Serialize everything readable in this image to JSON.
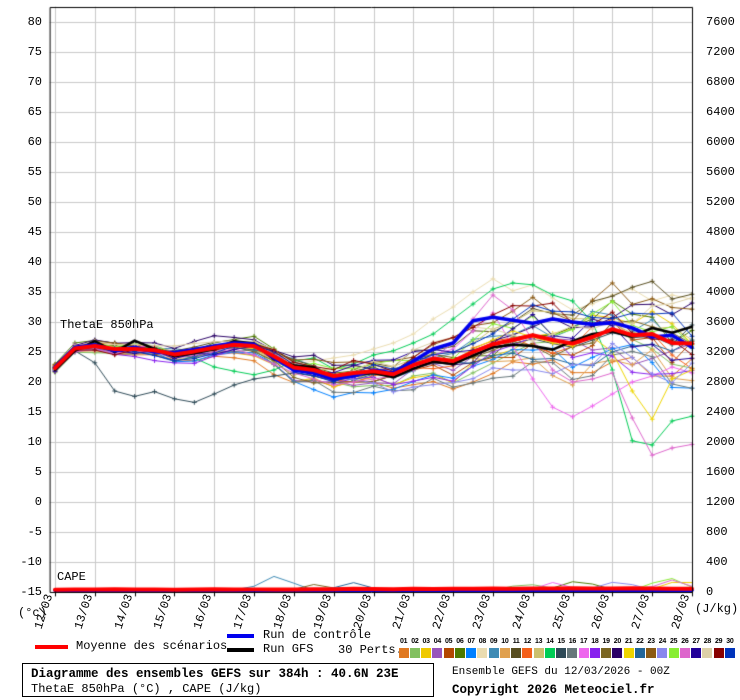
{
  "legend": {
    "mean_label": "Moyenne des scénarios",
    "control_label": "Run de contrôle",
    "gfs_label": "Run GFS",
    "perts_label": "30 Perts.",
    "pert_numbers": [
      "01",
      "02",
      "03",
      "04",
      "05",
      "06",
      "07",
      "08",
      "09",
      "10",
      "11",
      "12",
      "13",
      "14",
      "15",
      "16",
      "17",
      "18",
      "19",
      "20",
      "21",
      "22",
      "23",
      "24",
      "25",
      "26",
      "27",
      "28",
      "29",
      "30"
    ]
  },
  "footer": {
    "title": "Diagramme des ensembles GEFS sur 384h : 40.6N 23E",
    "subtitle": "ThetaE 850hPa (°C) , CAPE (J/kg)",
    "run_info": "Ensemble GEFS du 12/03/2026 - 00Z",
    "copyright": "Copyright 2026 Meteociel.fr"
  },
  "chart_data": {
    "type": "line",
    "title": "Diagramme des ensembles GEFS sur 384h : 40.6N 23E",
    "x_dates": [
      "12/03",
      "13/03",
      "14/03",
      "15/03",
      "16/03",
      "17/03",
      "18/03",
      "19/03",
      "20/03",
      "21/03",
      "22/03",
      "23/03",
      "24/03",
      "25/03",
      "26/03",
      "27/03",
      "28/03"
    ],
    "step_hours": 12,
    "span_hours": 384,
    "grid": true,
    "grid_color": "#c9c9c9",
    "y_left": {
      "unit": "(°c)",
      "min": -15,
      "max": 80,
      "ticks": [
        80,
        75,
        70,
        65,
        60,
        55,
        50,
        45,
        40,
        35,
        30,
        25,
        20,
        15,
        10,
        5,
        0,
        -5,
        -10,
        -15
      ]
    },
    "y_right": {
      "unit": "(J/kg)",
      "min": 0,
      "max": 7600,
      "ticks": [
        7600,
        7200,
        6800,
        6400,
        6000,
        5600,
        5200,
        4800,
        4400,
        4000,
        3600,
        3200,
        2800,
        2400,
        2000,
        1600,
        1200,
        800,
        400,
        0
      ]
    },
    "thetae_label": "ThetaE 850hPa",
    "cape_label": "CAPE",
    "colors": {
      "mean": "#ff0000",
      "control": "#0000ee",
      "gfs": "#000000"
    },
    "thetae": {
      "mean": [
        22.3,
        25.6,
        26.0,
        25.5,
        25.5,
        25.3,
        24.6,
        25.1,
        25.7,
        26.2,
        26.0,
        24.3,
        22.4,
        22.0,
        21.0,
        21.5,
        21.8,
        21.3,
        22.8,
        23.9,
        23.5,
        25.0,
        26.3,
        27.0,
        27.8,
        27.0,
        26.4,
        27.5,
        28.8,
        27.8,
        28.0,
        26.5,
        26.4
      ],
      "control": [
        22.5,
        25.8,
        26.2,
        25.2,
        25.8,
        25.0,
        24.9,
        25.4,
        26.0,
        26.5,
        26.3,
        24.0,
        22.0,
        21.5,
        20.5,
        21.0,
        22.0,
        21.5,
        23.5,
        25.5,
        26.5,
        30.2,
        30.8,
        30.3,
        29.8,
        30.5,
        30.0,
        29.6,
        29.9,
        29.0,
        27.5,
        27.8,
        25.8
      ],
      "gfs": [
        22.0,
        25.2,
        26.8,
        25.0,
        26.9,
        25.5,
        24.3,
        24.8,
        25.5,
        26.8,
        26.4,
        23.8,
        22.8,
        22.4,
        20.6,
        21.2,
        21.5,
        20.8,
        22.2,
        23.4,
        23.0,
        24.4,
        25.8,
        26.2,
        26.0,
        25.4,
        26.8,
        28.0,
        28.4,
        27.6,
        29.0,
        28.2,
        29.2
      ],
      "spread_by_day": [
        1.0,
        1.3,
        1.5,
        1.8,
        2.0,
        2.2,
        2.8,
        3.0,
        3.0,
        3.4,
        3.8,
        4.6,
        5.2,
        5.8,
        6.6,
        8.0,
        7.5
      ],
      "member_colors": [
        "#E07820",
        "#82C060",
        "#EFC900",
        "#9955BB",
        "#B34700",
        "#4E7A00",
        "#0080FF",
        "#EADCB0",
        "#3E8BB5",
        "#E0A04E",
        "#584E20",
        "#F4601A",
        "#CCC06E",
        "#00CC55",
        "#2E4A57",
        "#66777A",
        "#EE66EE",
        "#8822EE",
        "#7A6622",
        "#2A0066",
        "#EED500",
        "#226699",
        "#8B5A14",
        "#8888EE",
        "#88EE33",
        "#DD66CC",
        "#220099",
        "#DDD0A8",
        "#880000",
        "#0033BB"
      ],
      "member_specials": {
        "8": [
          22.0,
          25.3,
          25.8,
          25.0,
          25.3,
          25.5,
          24.5,
          25.0,
          25.8,
          26.3,
          26.0,
          24.5,
          23.0,
          23.5,
          24.0,
          24.5,
          25.5,
          26.5,
          28.0,
          30.5,
          32.5,
          35.0,
          37.2,
          35.2,
          36.2,
          34.0,
          32.0,
          33.0,
          34.5,
          35.5,
          33.5,
          34.5,
          33.8
        ],
        "14": [
          22.2,
          25.5,
          26.0,
          25.3,
          25.6,
          25.8,
          24.5,
          24.0,
          22.5,
          21.8,
          21.2,
          22.0,
          23.5,
          24.0,
          22.2,
          23.0,
          24.5,
          25.2,
          26.5,
          28.0,
          30.5,
          33.0,
          35.5,
          36.5,
          36.2,
          34.5,
          33.5,
          30.0,
          22.0,
          10.2,
          9.5,
          13.5,
          14.3
        ],
        "15": [
          22.0,
          25.2,
          23.2,
          18.5,
          17.6,
          18.4,
          17.2,
          16.6,
          18.0,
          19.5,
          20.5,
          21.0,
          21.5,
          21.0,
          20.2,
          20.8,
          21.4,
          20.8,
          22.2,
          23.2,
          23.0,
          24.6,
          25.8,
          26.4,
          27.2,
          26.4,
          25.8,
          27.0,
          28.2,
          27.4,
          27.6,
          26.2,
          29.5
        ],
        "17": [
          22.5,
          26.2,
          26.5,
          25.5,
          25.8,
          26.0,
          25.0,
          25.5,
          26.0,
          26.5,
          25.5,
          24.0,
          22.5,
          22.0,
          21.0,
          21.5,
          22.0,
          21.5,
          23.0,
          24.5,
          25.5,
          28.5,
          31.5,
          26.0,
          20.5,
          15.8,
          14.2,
          16.0,
          18.0,
          20.0,
          21.0,
          22.5,
          21.5
        ],
        "21": [
          22.3,
          25.5,
          26.0,
          25.2,
          25.5,
          25.3,
          24.5,
          25.0,
          25.5,
          26.0,
          25.5,
          24.0,
          22.5,
          22.0,
          21.0,
          21.5,
          22.0,
          21.3,
          22.8,
          24.0,
          23.5,
          25.5,
          27.0,
          28.5,
          27.5,
          26.5,
          26.0,
          27.5,
          25.0,
          18.5,
          13.8,
          20.5,
          22.0
        ],
        "26": [
          21.8,
          25.0,
          25.5,
          24.8,
          25.2,
          25.0,
          24.0,
          24.5,
          25.0,
          25.5,
          24.5,
          23.0,
          21.5,
          20.5,
          19.5,
          20.0,
          20.5,
          21.0,
          22.0,
          24.0,
          26.5,
          30.5,
          34.5,
          32.0,
          27.0,
          22.0,
          20.0,
          20.5,
          21.5,
          14.0,
          7.8,
          9.0,
          9.6
        ]
      }
    },
    "cape": {
      "mean": [
        30,
        34,
        32,
        36,
        33,
        35,
        30,
        34,
        36,
        32,
        35,
        33,
        34,
        36,
        38,
        44,
        40,
        38,
        42,
        40,
        44,
        42,
        46,
        44,
        48,
        46,
        50,
        46,
        48,
        50,
        46,
        44,
        45
      ],
      "control_level": 24,
      "gfs_level": 32,
      "bumps": [
        {
          "m": 9,
          "d": 5.6,
          "p": 185
        },
        {
          "m": 19,
          "d": 6.5,
          "p": 70
        },
        {
          "m": 22,
          "d": 7.5,
          "p": 85
        },
        {
          "m": 2,
          "d": 11.8,
          "p": 85
        },
        {
          "m": 17,
          "d": 12.5,
          "p": 95
        },
        {
          "m": 6,
          "d": 13.2,
          "p": 120
        },
        {
          "m": 24,
          "d": 14.2,
          "p": 110
        },
        {
          "m": 25,
          "d": 15.4,
          "p": 150
        },
        {
          "m": 3,
          "d": 15.8,
          "p": 130
        },
        {
          "m": 26,
          "d": 15.5,
          "p": 140
        }
      ]
    }
  }
}
